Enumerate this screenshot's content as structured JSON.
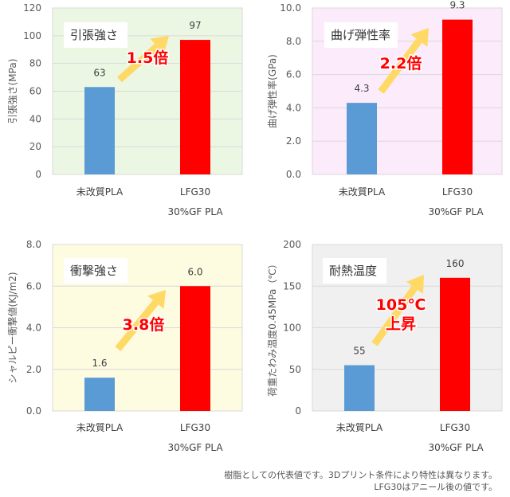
{
  "chart_data": [
    {
      "type": "bar",
      "title": "引張強さ",
      "ylabel": "引張強さ(MPa)",
      "ylim": [
        0,
        120
      ],
      "yticks": [
        "0",
        "20",
        "40",
        "60",
        "80",
        "100",
        "120"
      ],
      "categories": [
        "未改質PLA",
        "LFG30"
      ],
      "category_sublabel": "30%GF PLA",
      "values": [
        63,
        97
      ],
      "data_labels": [
        "63",
        "97"
      ],
      "annotation": [
        "1.5倍"
      ],
      "background": "#ebf7e3"
    },
    {
      "type": "bar",
      "title": "曲げ弾性率",
      "ylabel": "曲げ弾性率(GPa)",
      "ylim": [
        0,
        10
      ],
      "yticks": [
        "0.0",
        "2.0",
        "4.0",
        "6.0",
        "8.0",
        "10.0"
      ],
      "categories": [
        "未改質PLA",
        "LFG30"
      ],
      "category_sublabel": "30%GF PLA",
      "values": [
        4.3,
        9.3
      ],
      "data_labels": [
        "4.3",
        "9.3"
      ],
      "annotation": [
        "2.2倍"
      ],
      "background": "#fcebfb"
    },
    {
      "type": "bar",
      "title": "衝撃強さ",
      "ylabel": "シャルピー衝撃値(KJ/m2)",
      "ylim": [
        0,
        8
      ],
      "yticks": [
        "0.0",
        "2.0",
        "4.0",
        "6.0",
        "8.0"
      ],
      "categories": [
        "未改質PLA",
        "LFG30"
      ],
      "category_sublabel": "30%GF PLA",
      "values": [
        1.6,
        6.0
      ],
      "data_labels": [
        "1.6",
        "6.0"
      ],
      "annotation": [
        "3.8倍"
      ],
      "background": "#fdfbe0"
    },
    {
      "type": "bar",
      "title": "耐熱温度",
      "ylabel": "荷重たわみ温度0.45MPa（℃）",
      "ylim": [
        0,
        200
      ],
      "yticks": [
        "0",
        "50",
        "100",
        "150",
        "200"
      ],
      "categories": [
        "未改質PLA",
        "LFG30"
      ],
      "category_sublabel": "30%GF PLA",
      "values": [
        55,
        160
      ],
      "data_labels": [
        "55",
        "160"
      ],
      "annotation": [
        "105℃",
        "上昇"
      ],
      "background": "#f0f0f0"
    }
  ],
  "colors": {
    "bar_first": "#5b9bd5",
    "bar_second": "#ff0000",
    "arrow": "#ffd966",
    "annotation_text": "#ff0000",
    "grid": "#d9d9d9",
    "tick_text": "#595959"
  },
  "footnote": {
    "line1": "樹脂としての代表値です。3Dプリント条件により特性は異なります。",
    "line2": "LFG30はアニール後の値です。"
  }
}
